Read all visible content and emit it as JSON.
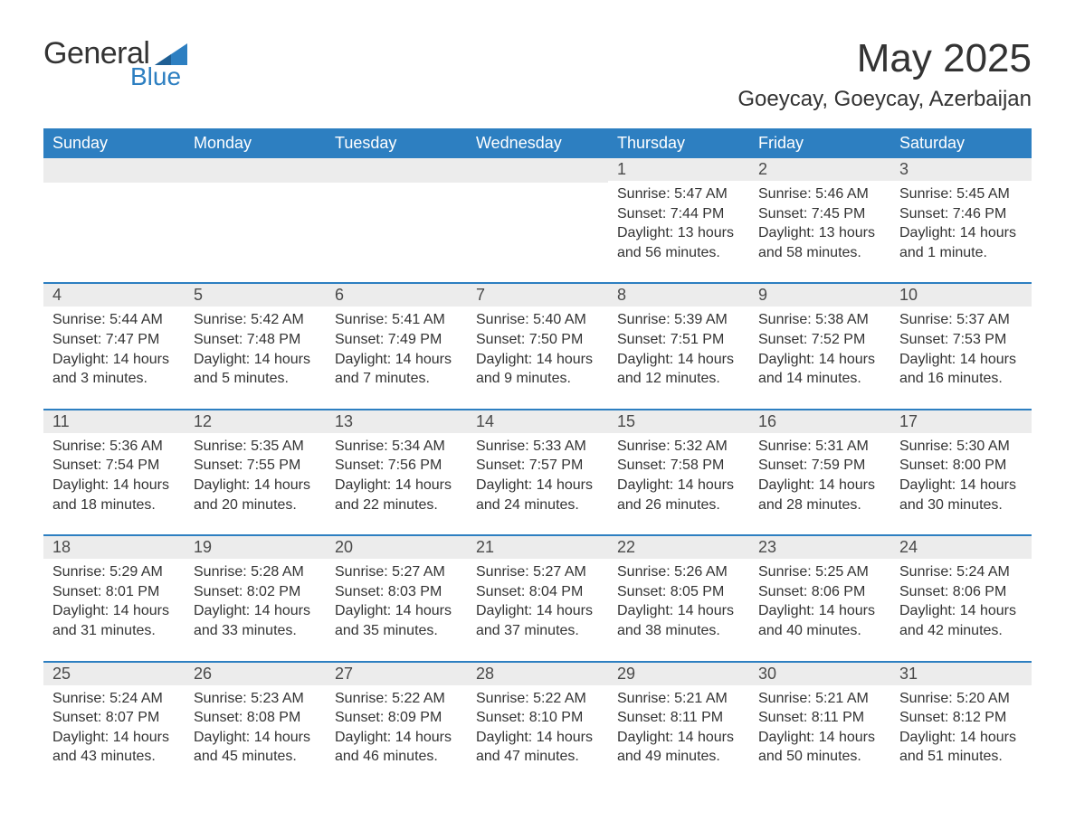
{
  "brand": {
    "line1": "General",
    "line2": "Blue",
    "accent_color": "#2d7fc1"
  },
  "title": "May 2025",
  "location": "Goeycay, Goeycay, Azerbaijan",
  "colors": {
    "header_bg": "#2d7fc1",
    "header_text": "#ffffff",
    "day_header_bg": "#ececec",
    "day_header_border": "#2d7fc1",
    "body_text": "#333333"
  },
  "daysOfWeek": [
    "Sunday",
    "Monday",
    "Tuesday",
    "Wednesday",
    "Thursday",
    "Friday",
    "Saturday"
  ],
  "weeks": [
    [
      null,
      null,
      null,
      null,
      {
        "n": "1",
        "sunrise": "Sunrise: 5:47 AM",
        "sunset": "Sunset: 7:44 PM",
        "daylight": "Daylight: 13 hours and 56 minutes."
      },
      {
        "n": "2",
        "sunrise": "Sunrise: 5:46 AM",
        "sunset": "Sunset: 7:45 PM",
        "daylight": "Daylight: 13 hours and 58 minutes."
      },
      {
        "n": "3",
        "sunrise": "Sunrise: 5:45 AM",
        "sunset": "Sunset: 7:46 PM",
        "daylight": "Daylight: 14 hours and 1 minute."
      }
    ],
    [
      {
        "n": "4",
        "sunrise": "Sunrise: 5:44 AM",
        "sunset": "Sunset: 7:47 PM",
        "daylight": "Daylight: 14 hours and 3 minutes."
      },
      {
        "n": "5",
        "sunrise": "Sunrise: 5:42 AM",
        "sunset": "Sunset: 7:48 PM",
        "daylight": "Daylight: 14 hours and 5 minutes."
      },
      {
        "n": "6",
        "sunrise": "Sunrise: 5:41 AM",
        "sunset": "Sunset: 7:49 PM",
        "daylight": "Daylight: 14 hours and 7 minutes."
      },
      {
        "n": "7",
        "sunrise": "Sunrise: 5:40 AM",
        "sunset": "Sunset: 7:50 PM",
        "daylight": "Daylight: 14 hours and 9 minutes."
      },
      {
        "n": "8",
        "sunrise": "Sunrise: 5:39 AM",
        "sunset": "Sunset: 7:51 PM",
        "daylight": "Daylight: 14 hours and 12 minutes."
      },
      {
        "n": "9",
        "sunrise": "Sunrise: 5:38 AM",
        "sunset": "Sunset: 7:52 PM",
        "daylight": "Daylight: 14 hours and 14 minutes."
      },
      {
        "n": "10",
        "sunrise": "Sunrise: 5:37 AM",
        "sunset": "Sunset: 7:53 PM",
        "daylight": "Daylight: 14 hours and 16 minutes."
      }
    ],
    [
      {
        "n": "11",
        "sunrise": "Sunrise: 5:36 AM",
        "sunset": "Sunset: 7:54 PM",
        "daylight": "Daylight: 14 hours and 18 minutes."
      },
      {
        "n": "12",
        "sunrise": "Sunrise: 5:35 AM",
        "sunset": "Sunset: 7:55 PM",
        "daylight": "Daylight: 14 hours and 20 minutes."
      },
      {
        "n": "13",
        "sunrise": "Sunrise: 5:34 AM",
        "sunset": "Sunset: 7:56 PM",
        "daylight": "Daylight: 14 hours and 22 minutes."
      },
      {
        "n": "14",
        "sunrise": "Sunrise: 5:33 AM",
        "sunset": "Sunset: 7:57 PM",
        "daylight": "Daylight: 14 hours and 24 minutes."
      },
      {
        "n": "15",
        "sunrise": "Sunrise: 5:32 AM",
        "sunset": "Sunset: 7:58 PM",
        "daylight": "Daylight: 14 hours and 26 minutes."
      },
      {
        "n": "16",
        "sunrise": "Sunrise: 5:31 AM",
        "sunset": "Sunset: 7:59 PM",
        "daylight": "Daylight: 14 hours and 28 minutes."
      },
      {
        "n": "17",
        "sunrise": "Sunrise: 5:30 AM",
        "sunset": "Sunset: 8:00 PM",
        "daylight": "Daylight: 14 hours and 30 minutes."
      }
    ],
    [
      {
        "n": "18",
        "sunrise": "Sunrise: 5:29 AM",
        "sunset": "Sunset: 8:01 PM",
        "daylight": "Daylight: 14 hours and 31 minutes."
      },
      {
        "n": "19",
        "sunrise": "Sunrise: 5:28 AM",
        "sunset": "Sunset: 8:02 PM",
        "daylight": "Daylight: 14 hours and 33 minutes."
      },
      {
        "n": "20",
        "sunrise": "Sunrise: 5:27 AM",
        "sunset": "Sunset: 8:03 PM",
        "daylight": "Daylight: 14 hours and 35 minutes."
      },
      {
        "n": "21",
        "sunrise": "Sunrise: 5:27 AM",
        "sunset": "Sunset: 8:04 PM",
        "daylight": "Daylight: 14 hours and 37 minutes."
      },
      {
        "n": "22",
        "sunrise": "Sunrise: 5:26 AM",
        "sunset": "Sunset: 8:05 PM",
        "daylight": "Daylight: 14 hours and 38 minutes."
      },
      {
        "n": "23",
        "sunrise": "Sunrise: 5:25 AM",
        "sunset": "Sunset: 8:06 PM",
        "daylight": "Daylight: 14 hours and 40 minutes."
      },
      {
        "n": "24",
        "sunrise": "Sunrise: 5:24 AM",
        "sunset": "Sunset: 8:06 PM",
        "daylight": "Daylight: 14 hours and 42 minutes."
      }
    ],
    [
      {
        "n": "25",
        "sunrise": "Sunrise: 5:24 AM",
        "sunset": "Sunset: 8:07 PM",
        "daylight": "Daylight: 14 hours and 43 minutes."
      },
      {
        "n": "26",
        "sunrise": "Sunrise: 5:23 AM",
        "sunset": "Sunset: 8:08 PM",
        "daylight": "Daylight: 14 hours and 45 minutes."
      },
      {
        "n": "27",
        "sunrise": "Sunrise: 5:22 AM",
        "sunset": "Sunset: 8:09 PM",
        "daylight": "Daylight: 14 hours and 46 minutes."
      },
      {
        "n": "28",
        "sunrise": "Sunrise: 5:22 AM",
        "sunset": "Sunset: 8:10 PM",
        "daylight": "Daylight: 14 hours and 47 minutes."
      },
      {
        "n": "29",
        "sunrise": "Sunrise: 5:21 AM",
        "sunset": "Sunset: 8:11 PM",
        "daylight": "Daylight: 14 hours and 49 minutes."
      },
      {
        "n": "30",
        "sunrise": "Sunrise: 5:21 AM",
        "sunset": "Sunset: 8:11 PM",
        "daylight": "Daylight: 14 hours and 50 minutes."
      },
      {
        "n": "31",
        "sunrise": "Sunrise: 5:20 AM",
        "sunset": "Sunset: 8:12 PM",
        "daylight": "Daylight: 14 hours and 51 minutes."
      }
    ]
  ]
}
